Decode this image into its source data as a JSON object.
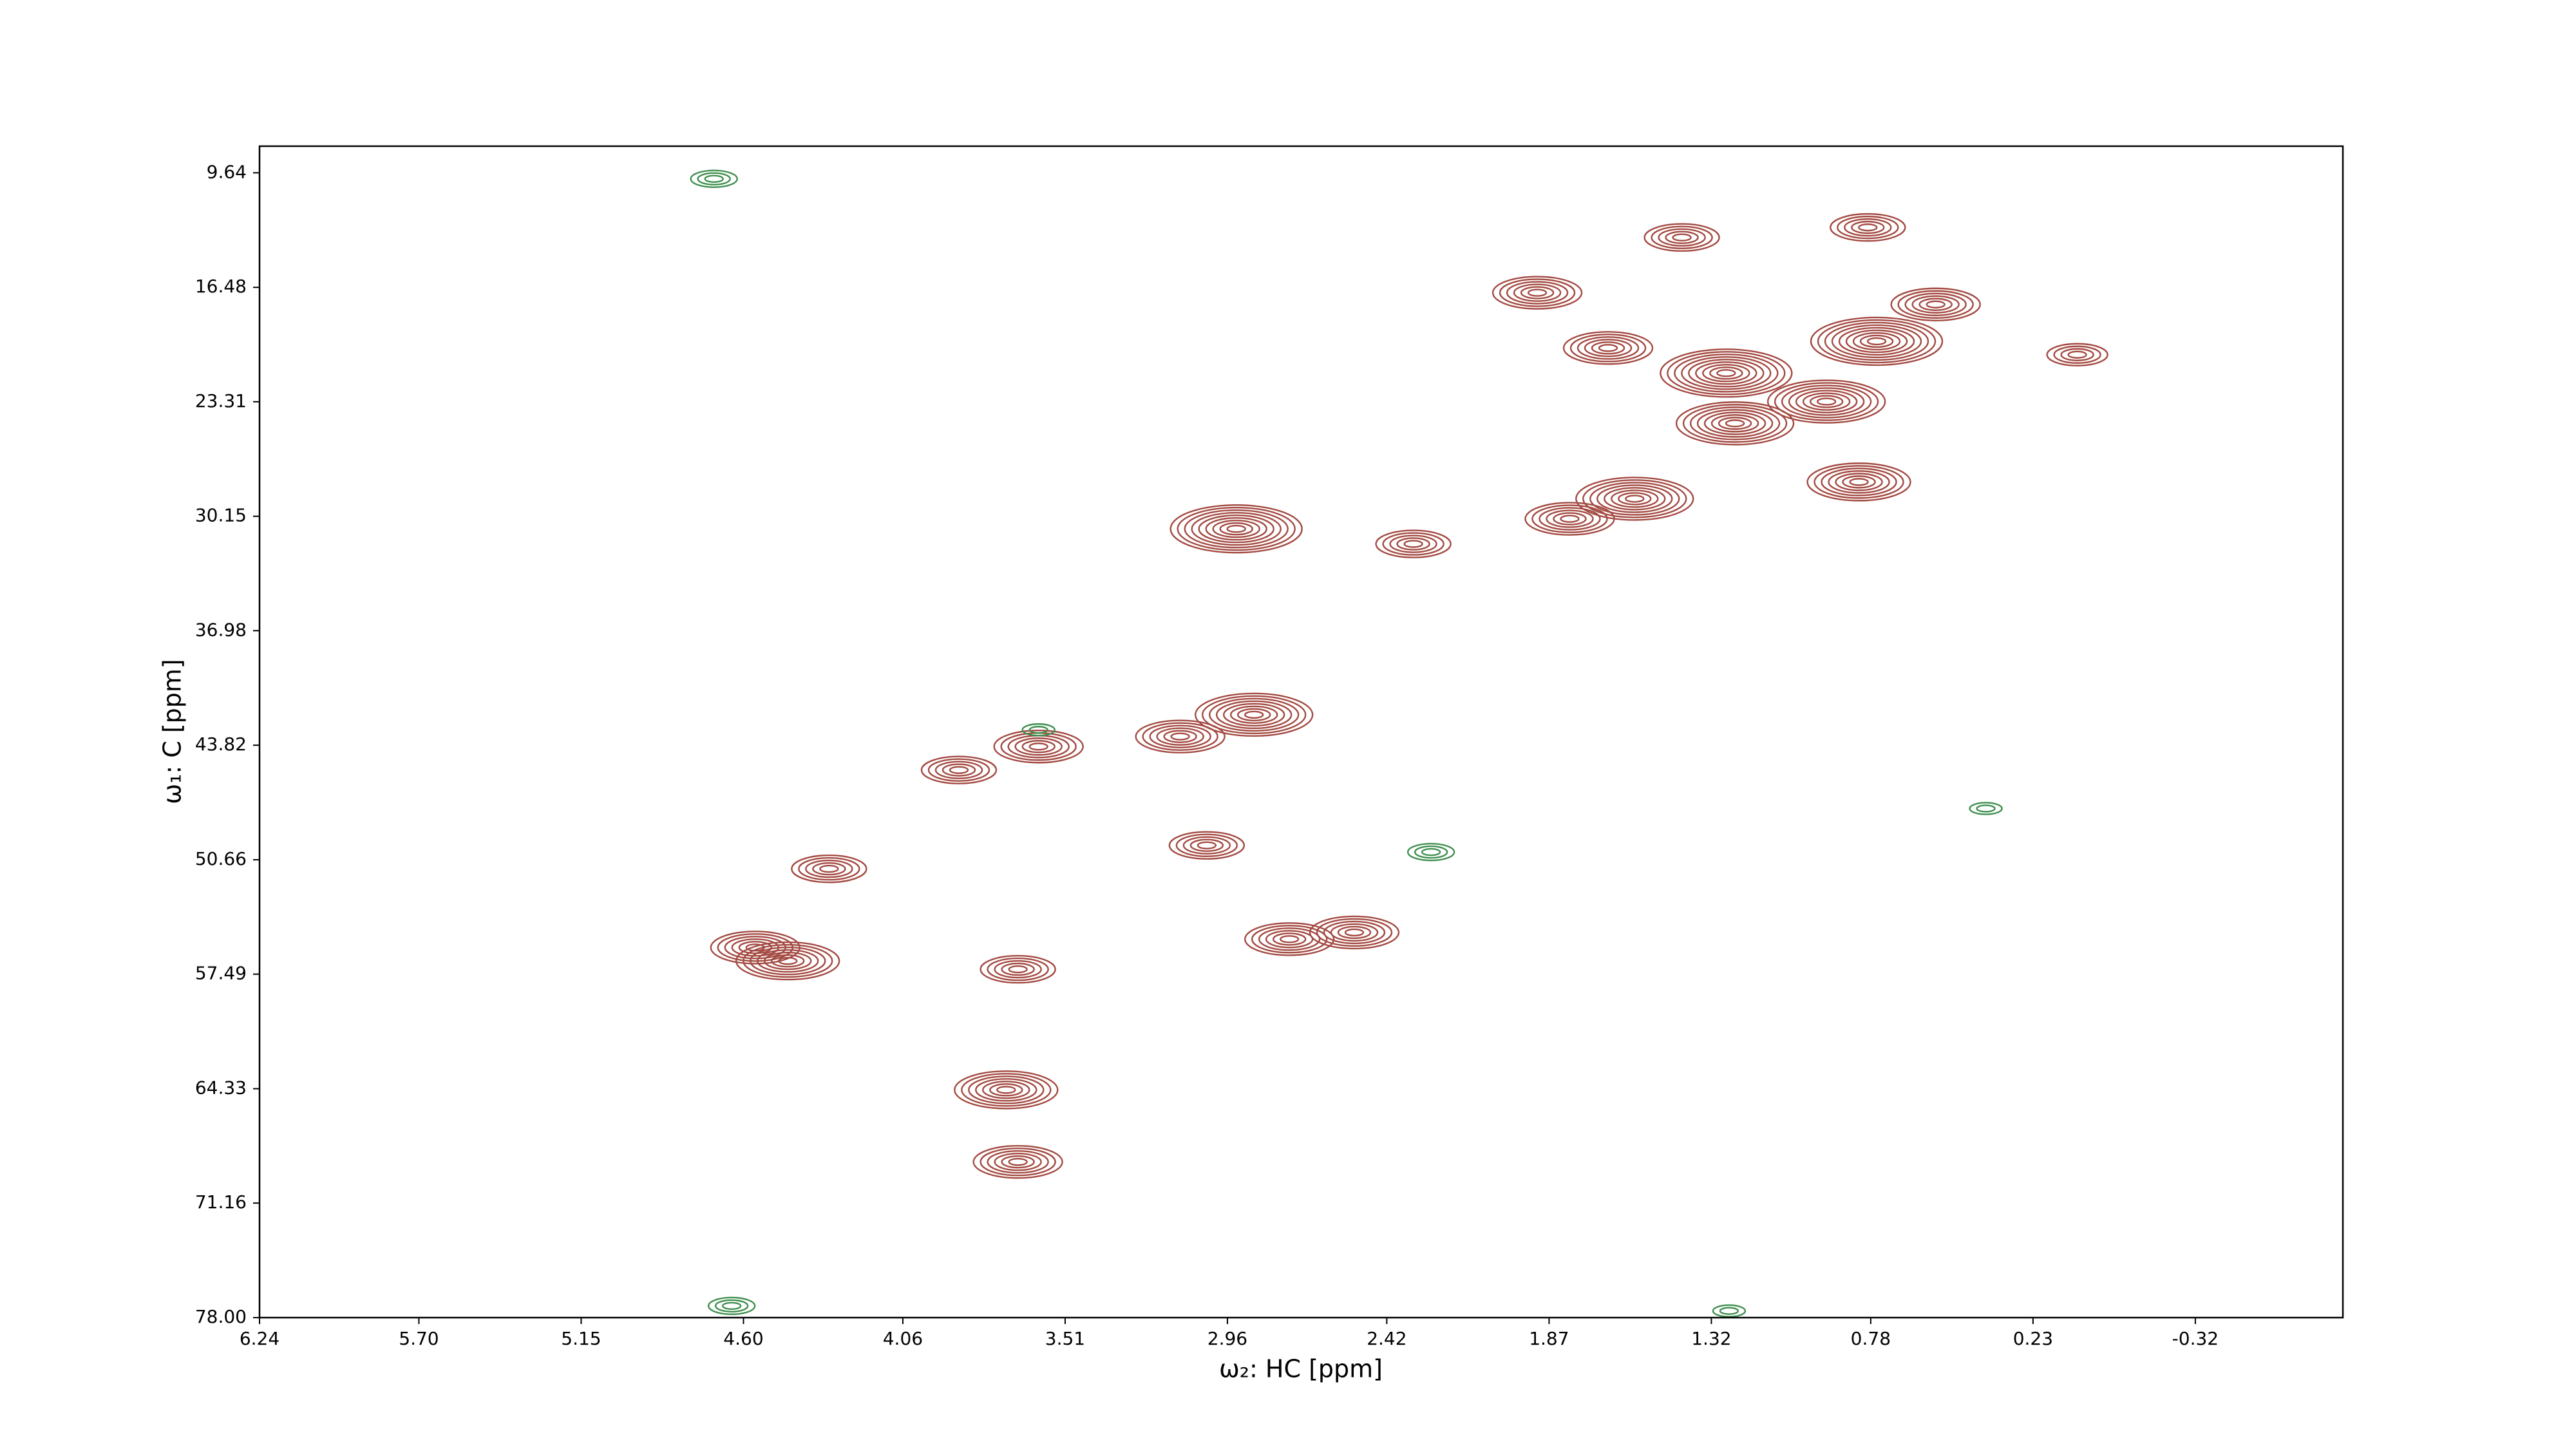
{
  "chart_data": {
    "type": "contour",
    "xlabel": "ω₂: HC [ppm]",
    "ylabel": "ω₁: C [ppm]",
    "xlim": [
      6.24,
      -0.82
    ],
    "ylim": [
      78.0,
      8.05
    ],
    "xticks": [
      6.24,
      {
        "value": 5.7,
        "label": "5.70"
      },
      5.15,
      {
        "value": 4.6,
        "label": "4.60"
      },
      4.06,
      3.51,
      2.96,
      2.42,
      1.87,
      1.32,
      0.78,
      0.23,
      -0.32
    ],
    "yticks": [
      9.64,
      16.48,
      23.31,
      30.15,
      36.98,
      43.82,
      50.66,
      57.49,
      64.33,
      71.16,
      {
        "value": 78.0,
        "label": "78.00"
      }
    ],
    "series": [
      {
        "color": "#a34a42",
        "x": [
          3.6,
          3.12,
          3.87,
          3.03,
          2.75,
          2.53,
          3.67,
          3.67,
          2.93,
          2.87,
          1.91,
          1.67,
          1.42,
          0.79,
          0.56,
          0.76,
          0.82,
          0.93,
          1.27,
          1.58,
          1.8,
          2.33,
          4.45,
          4.31,
          3.71,
          4.56,
          1.24,
          0.08
        ],
        "y": [
          43.9,
          43.3,
          45.3,
          49.8,
          55.4,
          55.0,
          57.2,
          68.7,
          30.9,
          42.0,
          16.8,
          20.1,
          13.5,
          12.9,
          17.5,
          19.7,
          28.1,
          23.3,
          21.6,
          29.1,
          30.3,
          31.8,
          56.7,
          51.2,
          64.4,
          55.9,
          24.6,
          20.5
        ],
        "levels": [
          6,
          6,
          5,
          5,
          6,
          6,
          5,
          6,
          9,
          8,
          6,
          6,
          5,
          5,
          6,
          9,
          7,
          8,
          9,
          8,
          6,
          5,
          7,
          5,
          7,
          6,
          8,
          4
        ]
      },
      {
        "color": "#3f8f4f",
        "x": [
          4.7,
          2.27,
          0.39,
          3.6,
          4.64,
          1.26
        ],
        "y": [
          10.0,
          50.2,
          47.6,
          42.9,
          77.3,
          77.6
        ],
        "levels": [
          3,
          3,
          2,
          2,
          3,
          2
        ]
      }
    ]
  }
}
